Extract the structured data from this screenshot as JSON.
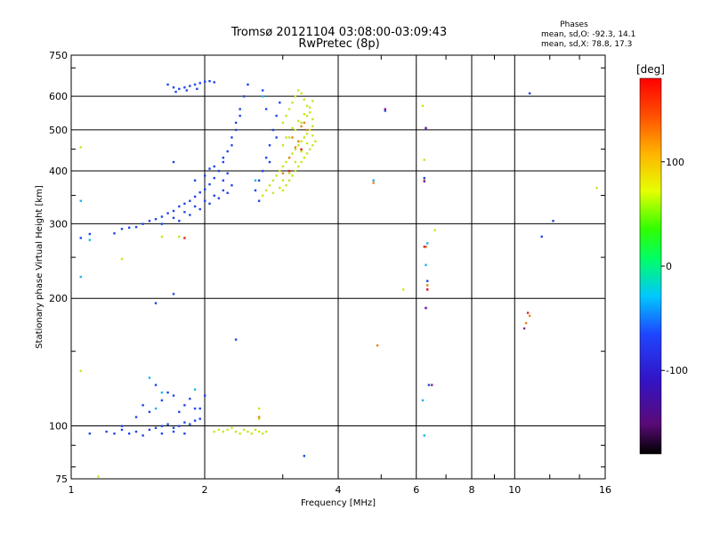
{
  "title": "Tromsø 20121104 03:08:00-03:09:43",
  "subtitle": "RwPretec (8p)",
  "stats": {
    "heading": "Phases",
    "line_o": "mean, sd,O: -92.3, 14.1",
    "line_x": "mean, sd,X: 78.8, 17.3"
  },
  "chart_data": {
    "type": "scatter",
    "xlabel": "Frequency [MHz]",
    "ylabel": "Stationary phase Virtual Height [km]",
    "x_scale": "log",
    "y_scale": "log",
    "xlim": [
      1,
      16
    ],
    "ylim": [
      75,
      750
    ],
    "x_ticks": [
      1,
      2,
      4,
      6,
      8,
      10,
      16
    ],
    "x_tick_labels": [
      "1",
      "2",
      "4",
      "6",
      "8",
      "10",
      "16"
    ],
    "y_ticks": [
      75,
      100,
      200,
      300,
      400,
      500,
      600,
      750
    ],
    "y_tick_labels": [
      "75",
      "100",
      "200",
      "300",
      "400",
      "500",
      "600",
      "750"
    ],
    "grid": true,
    "colorbar": {
      "label": "[deg]",
      "range": [
        -180,
        180
      ],
      "ticks": [
        100,
        0,
        -100
      ],
      "tick_labels": [
        "100",
        "0",
        "-100"
      ]
    },
    "series": [
      {
        "color": "#1e46e6",
        "points": [
          [
            1.05,
            278
          ],
          [
            1.1,
            284
          ],
          [
            1.25,
            285
          ],
          [
            1.3,
            292
          ],
          [
            1.35,
            294
          ],
          [
            1.4,
            295
          ],
          [
            1.45,
            300
          ],
          [
            1.5,
            305
          ],
          [
            1.55,
            308
          ],
          [
            1.6,
            312
          ],
          [
            1.65,
            318
          ],
          [
            1.7,
            322
          ],
          [
            1.75,
            330
          ],
          [
            1.8,
            335
          ],
          [
            1.85,
            340
          ],
          [
            1.9,
            348
          ],
          [
            1.95,
            356
          ],
          [
            2.0,
            362
          ],
          [
            2.05,
            372
          ],
          [
            2.1,
            385
          ],
          [
            2.15,
            400
          ],
          [
            2.2,
            420
          ],
          [
            2.25,
            445
          ],
          [
            2.3,
            480
          ],
          [
            2.35,
            520
          ],
          [
            2.4,
            560
          ],
          [
            2.45,
            600
          ],
          [
            2.5,
            640
          ],
          [
            1.6,
            300
          ],
          [
            1.7,
            310
          ],
          [
            1.8,
            320
          ],
          [
            1.9,
            330
          ],
          [
            2.0,
            340
          ],
          [
            2.1,
            350
          ],
          [
            2.2,
            360
          ],
          [
            1.75,
            305
          ],
          [
            1.85,
            315
          ],
          [
            1.95,
            325
          ],
          [
            2.05,
            335
          ],
          [
            2.15,
            345
          ],
          [
            2.25,
            355
          ],
          [
            2.3,
            370
          ],
          [
            2.0,
            390
          ],
          [
            2.1,
            410
          ],
          [
            1.9,
            380
          ],
          [
            2.2,
            430
          ],
          [
            2.3,
            460
          ],
          [
            2.35,
            500
          ],
          [
            2.4,
            540
          ],
          [
            2.2,
            380
          ],
          [
            2.25,
            395
          ],
          [
            2.05,
            405
          ],
          [
            1.65,
            640
          ],
          [
            1.7,
            630
          ],
          [
            1.75,
            625
          ],
          [
            1.8,
            630
          ],
          [
            1.85,
            635
          ],
          [
            1.9,
            640
          ],
          [
            1.95,
            645
          ],
          [
            2.0,
            650
          ],
          [
            2.05,
            652
          ],
          [
            2.1,
            648
          ],
          [
            1.72,
            615
          ],
          [
            1.82,
            620
          ],
          [
            1.92,
            625
          ],
          [
            2.6,
            360
          ],
          [
            2.65,
            380
          ],
          [
            2.7,
            400
          ],
          [
            2.75,
            430
          ],
          [
            2.8,
            460
          ],
          [
            2.85,
            500
          ],
          [
            2.9,
            540
          ],
          [
            2.95,
            580
          ],
          [
            2.7,
            620
          ],
          [
            2.75,
            560
          ],
          [
            2.65,
            340
          ],
          [
            2.8,
            420
          ],
          [
            2.9,
            480
          ],
          [
            1.7,
            205
          ],
          [
            1.55,
            195
          ],
          [
            1.7,
            420
          ],
          [
            2.35,
            160
          ],
          [
            1.1,
            96
          ],
          [
            1.2,
            97
          ],
          [
            1.3,
            98
          ],
          [
            1.35,
            96
          ],
          [
            1.4,
            97
          ],
          [
            1.45,
            95
          ],
          [
            1.5,
            98
          ],
          [
            1.55,
            99
          ],
          [
            1.6,
            100
          ],
          [
            1.65,
            101
          ],
          [
            1.7,
            99
          ],
          [
            1.75,
            100
          ],
          [
            1.8,
            102
          ],
          [
            1.85,
            101
          ],
          [
            1.9,
            103
          ],
          [
            1.95,
            104
          ],
          [
            1.6,
            115
          ],
          [
            1.7,
            118
          ],
          [
            1.8,
            112
          ],
          [
            1.9,
            110
          ],
          [
            1.65,
            120
          ],
          [
            1.75,
            108
          ],
          [
            1.85,
            116
          ],
          [
            1.55,
            125
          ],
          [
            1.5,
            108
          ],
          [
            1.45,
            112
          ],
          [
            1.4,
            105
          ],
          [
            1.95,
            110
          ],
          [
            2.0,
            118
          ],
          [
            1.25,
            96
          ],
          [
            1.3,
            100
          ],
          [
            1.6,
            96
          ],
          [
            1.7,
            97
          ],
          [
            1.8,
            96
          ],
          [
            6.3,
            265
          ],
          [
            6.35,
            220
          ],
          [
            6.3,
            190
          ],
          [
            6.4,
            125
          ],
          [
            6.25,
            385
          ],
          [
            6.3,
            505
          ],
          [
            10.8,
            610
          ],
          [
            12.2,
            305
          ],
          [
            11.5,
            280
          ],
          [
            3.35,
            85
          ],
          [
            5.1,
            555
          ]
        ]
      },
      {
        "color": "#c8e61e",
        "points": [
          [
            2.7,
            350
          ],
          [
            2.75,
            360
          ],
          [
            2.8,
            370
          ],
          [
            2.85,
            380
          ],
          [
            2.9,
            390
          ],
          [
            2.95,
            400
          ],
          [
            3.0,
            410
          ],
          [
            3.05,
            420
          ],
          [
            3.1,
            430
          ],
          [
            3.15,
            440
          ],
          [
            3.2,
            450
          ],
          [
            3.25,
            460
          ],
          [
            3.3,
            470
          ],
          [
            3.35,
            480
          ],
          [
            3.4,
            490
          ],
          [
            3.45,
            500
          ],
          [
            3.5,
            510
          ],
          [
            3.0,
            360
          ],
          [
            3.05,
            370
          ],
          [
            3.1,
            380
          ],
          [
            3.15,
            390
          ],
          [
            3.2,
            400
          ],
          [
            3.25,
            410
          ],
          [
            3.3,
            420
          ],
          [
            3.35,
            430
          ],
          [
            3.4,
            440
          ],
          [
            3.45,
            450
          ],
          [
            3.5,
            460
          ],
          [
            3.55,
            470
          ],
          [
            3.0,
            520
          ],
          [
            3.05,
            540
          ],
          [
            3.1,
            560
          ],
          [
            3.15,
            580
          ],
          [
            3.2,
            600
          ],
          [
            3.25,
            620
          ],
          [
            3.3,
            610
          ],
          [
            3.35,
            590
          ],
          [
            3.4,
            570
          ],
          [
            3.45,
            550
          ],
          [
            3.5,
            530
          ],
          [
            3.1,
            480
          ],
          [
            3.2,
            500
          ],
          [
            3.3,
            520
          ],
          [
            3.4,
            540
          ],
          [
            3.0,
            460
          ],
          [
            3.05,
            480
          ],
          [
            3.15,
            505
          ],
          [
            3.25,
            525
          ],
          [
            3.35,
            545
          ],
          [
            3.45,
            565
          ],
          [
            3.5,
            585
          ],
          [
            2.85,
            355
          ],
          [
            2.95,
            365
          ],
          [
            3.0,
            380
          ],
          [
            3.1,
            395
          ],
          [
            3.2,
            420
          ],
          [
            3.3,
            445
          ],
          [
            3.4,
            465
          ],
          [
            3.5,
            485
          ],
          [
            2.1,
            97
          ],
          [
            2.15,
            98
          ],
          [
            2.2,
            97
          ],
          [
            2.25,
            98
          ],
          [
            2.3,
            99
          ],
          [
            2.35,
            97
          ],
          [
            2.4,
            96
          ],
          [
            2.45,
            98
          ],
          [
            2.5,
            97
          ],
          [
            2.55,
            96
          ],
          [
            2.6,
            98
          ],
          [
            2.65,
            97
          ],
          [
            2.7,
            96
          ],
          [
            2.75,
            97
          ],
          [
            2.65,
            104
          ],
          [
            2.65,
            110
          ],
          [
            1.05,
            455
          ],
          [
            1.6,
            280
          ],
          [
            1.75,
            280
          ],
          [
            1.3,
            248
          ],
          [
            6.6,
            290
          ],
          [
            6.2,
            570
          ],
          [
            15.3,
            365
          ],
          [
            1.05,
            135
          ],
          [
            1.15,
            76
          ],
          [
            5.6,
            210
          ],
          [
            6.25,
            425
          ]
        ]
      },
      {
        "color": "#e6821e",
        "points": [
          [
            3.1,
            430
          ],
          [
            3.2,
            455
          ],
          [
            3.15,
            480
          ],
          [
            3.3,
            510
          ],
          [
            3.0,
            395
          ],
          [
            3.25,
            470
          ],
          [
            3.4,
            500
          ],
          [
            3.35,
            520
          ],
          [
            2.65,
            105
          ],
          [
            4.8,
            375
          ],
          [
            4.9,
            155
          ],
          [
            10.6,
            175
          ],
          [
            10.8,
            182
          ],
          [
            6.25,
            380
          ],
          [
            6.35,
            215
          ],
          [
            6.3,
            265
          ]
        ]
      },
      {
        "color": "#8c1ea0",
        "points": [
          [
            5.1,
            560
          ],
          [
            6.25,
            378
          ],
          [
            6.3,
            505
          ],
          [
            6.3,
            190
          ],
          [
            6.5,
            125
          ],
          [
            10.5,
            170
          ],
          [
            6.35,
            210
          ]
        ]
      },
      {
        "color": "#1eb4e6",
        "points": [
          [
            1.05,
            340
          ],
          [
            1.05,
            225
          ],
          [
            1.1,
            275
          ],
          [
            4.8,
            380
          ],
          [
            6.25,
            95
          ],
          [
            6.35,
            270
          ],
          [
            6.2,
            115
          ],
          [
            2.6,
            380
          ],
          [
            2.7,
            600
          ],
          [
            1.6,
            120
          ],
          [
            1.55,
            110
          ],
          [
            1.5,
            130
          ],
          [
            1.9,
            122
          ],
          [
            6.3,
            240
          ]
        ]
      },
      {
        "color": "#e61e1e",
        "points": [
          [
            3.1,
            400
          ],
          [
            3.3,
            450
          ],
          [
            6.35,
            210
          ],
          [
            10.7,
            185
          ],
          [
            1.8,
            278
          ],
          [
            6.25,
            265
          ]
        ]
      }
    ]
  }
}
